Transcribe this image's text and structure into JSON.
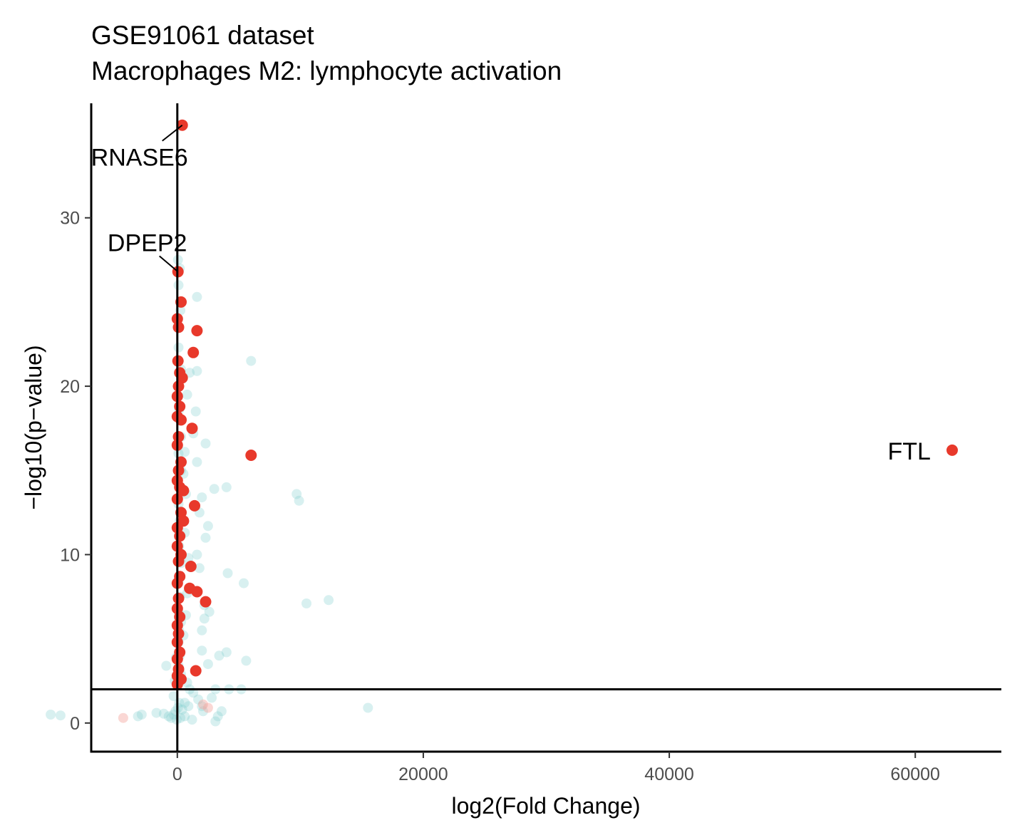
{
  "chart_data": {
    "type": "scatter",
    "title": "GSE91061 dataset",
    "subtitle": "Macrophages M2: lymphocyte activation",
    "xlabel": "log2(Fold Change)",
    "ylabel": "−log10(p−value)",
    "xlim": [
      -7000,
      67000
    ],
    "ylim": [
      -1.7,
      36.8
    ],
    "x_ticks": [
      0,
      20000,
      40000,
      60000
    ],
    "x_tick_labels": [
      "0",
      "20000",
      "40000",
      "60000"
    ],
    "y_ticks": [
      0,
      10,
      20,
      30
    ],
    "y_tick_labels": [
      "0",
      "10",
      "20",
      "30"
    ],
    "grid": false,
    "legend": "none",
    "reference_lines": {
      "vertical_x": 0,
      "horizontal_y": 2
    },
    "colors": {
      "highlighted": "#E8392B",
      "background": "#7FCDCD",
      "faint_red": "#F4A6A0",
      "line": "#000000",
      "tick_text": "#4d4d4d"
    },
    "series": [
      {
        "role": "background-genes",
        "points": [
          [
            -10300,
            0.5
          ],
          [
            -9500,
            0.45
          ],
          [
            -3200,
            0.4
          ],
          [
            -2900,
            0.5
          ],
          [
            -1700,
            0.6
          ],
          [
            -1100,
            0.55
          ],
          [
            -700,
            0.4
          ],
          [
            -500,
            0.3
          ],
          [
            -300,
            0.5
          ],
          [
            -150,
            0.7
          ],
          [
            -50,
            0.2
          ],
          [
            50,
            0.9
          ],
          [
            150,
            1.2
          ],
          [
            250,
            0.3
          ],
          [
            400,
            0.8
          ],
          [
            600,
            0.4
          ],
          [
            900,
            1.0
          ],
          [
            1200,
            0.2
          ],
          [
            -900,
            3.4
          ],
          [
            -300,
            1.6
          ],
          [
            2100,
            0.7
          ],
          [
            2800,
            1.5
          ],
          [
            3600,
            0.7
          ],
          [
            3100,
            0.1
          ],
          [
            3300,
            0.4
          ],
          [
            15500,
            0.9
          ],
          [
            3100,
            2.0
          ],
          [
            4200,
            2.0
          ],
          [
            5200,
            2.0
          ],
          [
            4000,
            4.2
          ],
          [
            5600,
            3.7
          ],
          [
            3400,
            4.0
          ],
          [
            2500,
            3.5
          ],
          [
            2000,
            4.3
          ],
          [
            2000,
            5.5
          ],
          [
            2200,
            6.2
          ],
          [
            2600,
            6.6
          ],
          [
            2200,
            7.0
          ],
          [
            4100,
            8.9
          ],
          [
            5400,
            8.3
          ],
          [
            1800,
            9.2
          ],
          [
            1600,
            10.0
          ],
          [
            2300,
            11.0
          ],
          [
            2500,
            11.7
          ],
          [
            1800,
            12.5
          ],
          [
            2000,
            13.4
          ],
          [
            3000,
            13.9
          ],
          [
            4000,
            14.0
          ],
          [
            9700,
            13.6
          ],
          [
            9900,
            13.2
          ],
          [
            10500,
            7.1
          ],
          [
            12300,
            7.3
          ],
          [
            1600,
            15.5
          ],
          [
            2300,
            16.6
          ],
          [
            1300,
            17.2
          ],
          [
            1500,
            18.5
          ],
          [
            800,
            19.5
          ],
          [
            1000,
            20.8
          ],
          [
            1600,
            20.9
          ],
          [
            6000,
            21.5
          ],
          [
            1600,
            25.3
          ],
          [
            100,
            26.0
          ],
          [
            200,
            27.0
          ],
          [
            50,
            27.5
          ],
          [
            250,
            24.5
          ],
          [
            100,
            22.3
          ],
          [
            300,
            21.0
          ],
          [
            150,
            18.6
          ],
          [
            300,
            17.0
          ],
          [
            100,
            16.0
          ],
          [
            300,
            15.0
          ],
          [
            100,
            13.0
          ],
          [
            200,
            12.0
          ],
          [
            150,
            10.5
          ],
          [
            300,
            9.5
          ],
          [
            100,
            8.4
          ],
          [
            200,
            7.5
          ],
          [
            100,
            6.6
          ],
          [
            300,
            6.0
          ],
          [
            150,
            5.5
          ],
          [
            100,
            4.8
          ],
          [
            200,
            4.0
          ],
          [
            100,
            3.4
          ],
          [
            300,
            2.9
          ],
          [
            800,
            2.4
          ],
          [
            1000,
            2.0
          ],
          [
            1300,
            1.8
          ],
          [
            1700,
            1.4
          ],
          [
            600,
            1.2
          ],
          [
            2000,
            1.0
          ],
          [
            -200,
            2.5
          ],
          [
            -100,
            3.9
          ],
          [
            500,
            5.2
          ],
          [
            700,
            6.4
          ],
          [
            800,
            7.7
          ],
          [
            900,
            9.8
          ],
          [
            600,
            11.3
          ],
          [
            700,
            13.6
          ],
          [
            500,
            14.8
          ],
          [
            600,
            16.1
          ]
        ]
      },
      {
        "role": "faint-downregulated",
        "points": [
          [
            -4400,
            0.3
          ],
          [
            2100,
            1.1
          ],
          [
            2500,
            0.9
          ]
        ]
      },
      {
        "role": "highlighted-genes",
        "points": [
          [
            400,
            35.5
          ],
          [
            50,
            26.8
          ],
          [
            300,
            25.0
          ],
          [
            0,
            24.0
          ],
          [
            100,
            23.5
          ],
          [
            1600,
            23.3
          ],
          [
            1300,
            22.0
          ],
          [
            50,
            21.5
          ],
          [
            200,
            20.8
          ],
          [
            400,
            20.5
          ],
          [
            100,
            20.0
          ],
          [
            0,
            19.4
          ],
          [
            200,
            18.8
          ],
          [
            0,
            18.2
          ],
          [
            300,
            18.0
          ],
          [
            1200,
            17.5
          ],
          [
            100,
            17.0
          ],
          [
            0,
            16.5
          ],
          [
            6000,
            15.9
          ],
          [
            300,
            15.5
          ],
          [
            100,
            15.0
          ],
          [
            0,
            14.4
          ],
          [
            200,
            14.0
          ],
          [
            500,
            13.8
          ],
          [
            0,
            13.3
          ],
          [
            1400,
            12.9
          ],
          [
            300,
            12.5
          ],
          [
            500,
            12.0
          ],
          [
            0,
            11.6
          ],
          [
            200,
            11.1
          ],
          [
            0,
            10.5
          ],
          [
            300,
            10.0
          ],
          [
            100,
            9.6
          ],
          [
            1100,
            9.3
          ],
          [
            200,
            8.7
          ],
          [
            0,
            8.3
          ],
          [
            1000,
            8.0
          ],
          [
            1600,
            7.8
          ],
          [
            2300,
            7.2
          ],
          [
            100,
            7.4
          ],
          [
            0,
            6.8
          ],
          [
            200,
            6.3
          ],
          [
            0,
            5.8
          ],
          [
            100,
            5.3
          ],
          [
            0,
            4.8
          ],
          [
            200,
            4.2
          ],
          [
            0,
            3.8
          ],
          [
            1500,
            3.1
          ],
          [
            100,
            3.2
          ],
          [
            0,
            2.8
          ],
          [
            300,
            2.6
          ],
          [
            0,
            2.3
          ],
          [
            63000,
            16.2
          ]
        ]
      }
    ],
    "labeled_points": [
      {
        "gene": "RNASE6",
        "x": 400,
        "y": 35.5
      },
      {
        "gene": "DPEP2",
        "x": 50,
        "y": 26.8
      },
      {
        "gene": "FTL",
        "x": 63000,
        "y": 16.2
      }
    ]
  }
}
